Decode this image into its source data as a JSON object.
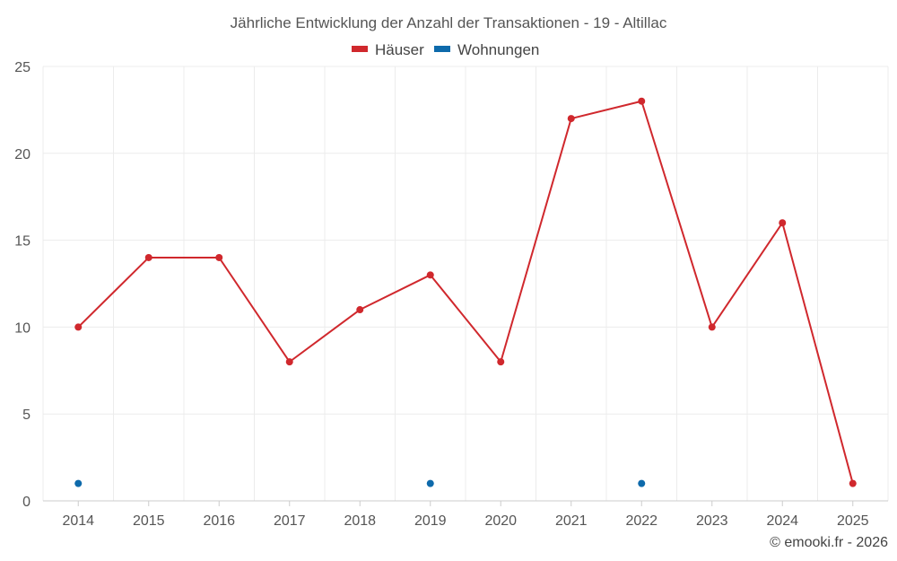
{
  "chart_data": {
    "type": "line",
    "title": "Jährliche Entwicklung der Anzahl der Transaktionen - 19 - Altillac",
    "x": [
      "2014",
      "2015",
      "2016",
      "2017",
      "2018",
      "2019",
      "2020",
      "2021",
      "2022",
      "2023",
      "2024",
      "2025"
    ],
    "ylim": [
      0,
      25
    ],
    "yticks": [
      0,
      5,
      10,
      15,
      20,
      25
    ],
    "grid": true,
    "legend_position": "top",
    "series": [
      {
        "name": "Häuser",
        "color": "#d0282d",
        "line": true,
        "values": [
          10,
          14,
          14,
          8,
          11,
          13,
          8,
          22,
          23,
          10,
          16,
          1
        ]
      },
      {
        "name": "Wohnungen",
        "color": "#0e6aab",
        "line": false,
        "values": [
          1,
          null,
          null,
          null,
          null,
          1,
          null,
          null,
          1,
          null,
          null,
          null
        ]
      }
    ]
  },
  "footer": "© emooki.fr - 2026"
}
